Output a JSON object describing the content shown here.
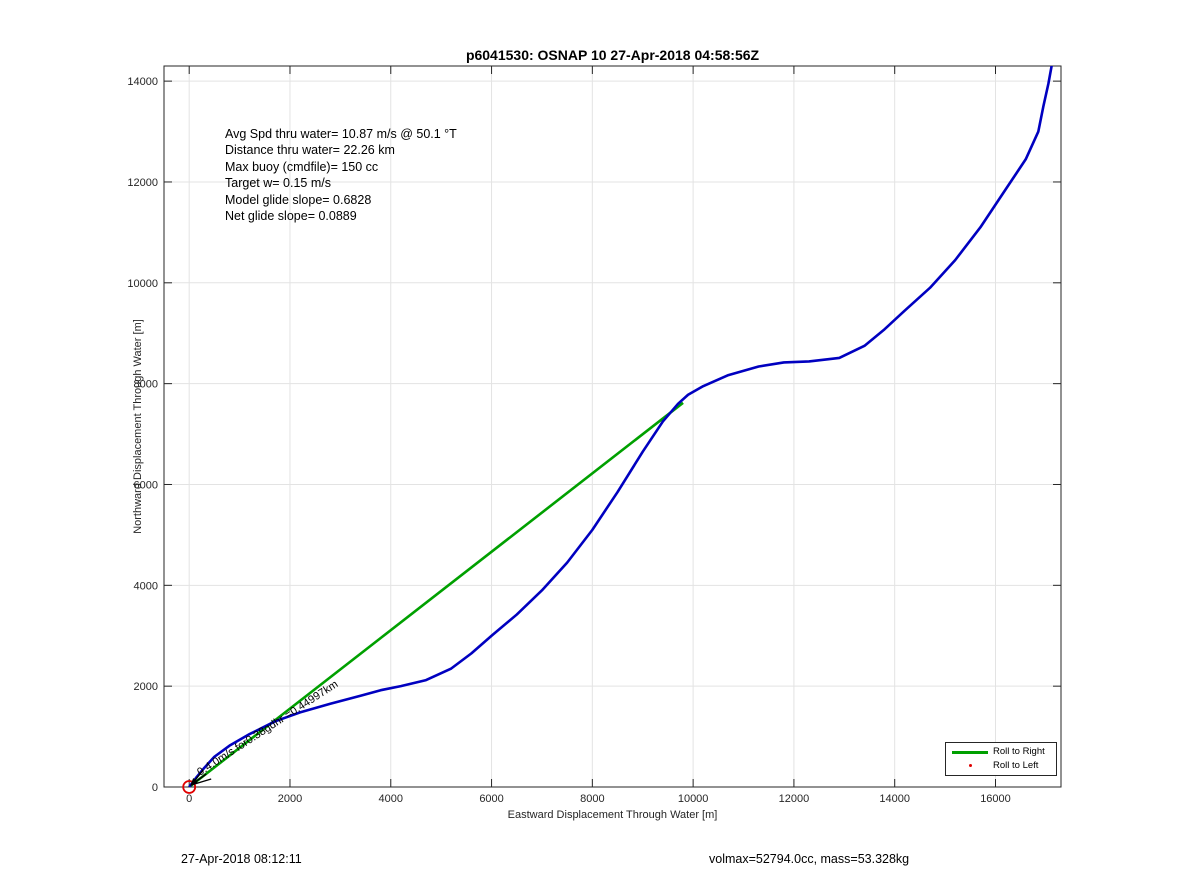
{
  "chart_data": {
    "type": "line",
    "title": "p6041530: OSNAP 10 27-Apr-2018 04:58:56Z",
    "xlabel": "Eastward Displacement Through Water [m]",
    "ylabel": "Northward Displacement Through Water [m]",
    "xlim": [
      -500,
      17300
    ],
    "ylim": [
      0,
      14300
    ],
    "xticks": [
      0,
      2000,
      4000,
      6000,
      8000,
      10000,
      12000,
      14000,
      16000
    ],
    "yticks": [
      0,
      2000,
      4000,
      6000,
      8000,
      10000,
      12000,
      14000
    ],
    "grid": true,
    "series": [
      {
        "color": "#0000c0",
        "x": [
          0,
          150,
          300,
          500,
          800,
          1200,
          1700,
          2200,
          2800,
          3400,
          3800,
          4200,
          4700,
          5200,
          5600,
          6000,
          6500,
          7000,
          7500,
          8000,
          8500,
          9000,
          9400,
          9700,
          9900,
          10200,
          10700,
          11300,
          11800,
          12300,
          12900,
          13400,
          13800,
          14200,
          14700,
          15200,
          15700,
          16200,
          16600,
          16850,
          16950,
          17050,
          17150
        ],
        "y": [
          0,
          200,
          380,
          600,
          820,
          1050,
          1300,
          1480,
          1650,
          1810,
          1920,
          2000,
          2120,
          2350,
          2650,
          3000,
          3420,
          3900,
          4450,
          5100,
          5850,
          6650,
          7250,
          7600,
          7780,
          7950,
          8170,
          8340,
          8420,
          8440,
          8510,
          8750,
          9080,
          9450,
          9900,
          10450,
          11100,
          11850,
          12450,
          13000,
          13500,
          13950,
          14500
        ]
      },
      {
        "name": "Roll to Right",
        "color": "#00a000",
        "x": [
          0,
          9800
        ],
        "y": [
          0,
          7620
        ]
      },
      {
        "name": "Roll to Left",
        "color": "#e00000",
        "marker": "dot"
      }
    ],
    "annotations": {
      "arrow_label": "0.4.0m/s for0.38gdhr =0.44997km",
      "start_marker_color": "#e00000",
      "arrow_color": "#000000"
    },
    "legend_position": "bottom-right",
    "stats": [
      "Avg Spd thru water= 10.87 m/s @  50.1 °T",
      "Distance thru water= 22.26 km",
      "Max buoy (cmdfile)= 150 cc",
      "Target w= 0.15 m/s",
      "Model glide slope= 0.6828",
      "Net glide slope= 0.0889"
    ]
  },
  "footer": {
    "left": "27-Apr-2018 08:12:11",
    "right": "volmax=52794.0cc, mass=53.328kg"
  }
}
